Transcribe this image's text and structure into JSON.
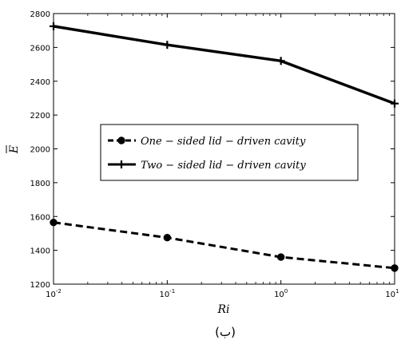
{
  "chart_data": {
    "type": "line",
    "x": [
      0.01,
      0.1,
      1,
      10
    ],
    "x_tick_labels": [
      {
        "base": "10",
        "exp": "-2"
      },
      {
        "base": "10",
        "exp": "-1"
      },
      {
        "base": "10",
        "exp": "0"
      },
      {
        "base": "10",
        "exp": "1"
      }
    ],
    "xscale": "log",
    "xlim": [
      0.01,
      10
    ],
    "ylim": [
      1200,
      2800
    ],
    "yticks": [
      1200,
      1400,
      1600,
      1800,
      2000,
      2200,
      2400,
      2600,
      2800
    ],
    "xlabel": "Ri",
    "ylabel": "E",
    "caption": "(ب)",
    "legend_position": "center",
    "grid": false,
    "series": [
      {
        "name": "One − sided lid − driven cavity",
        "values": [
          1565,
          1475,
          1360,
          1295
        ],
        "line_style": "dashed",
        "marker": "circle",
        "color": "#000000"
      },
      {
        "name": "Two − sided lid − driven cavity",
        "values": [
          2725,
          2615,
          2520,
          2268
        ],
        "line_style": "solid",
        "marker": "plus",
        "color": "#000000"
      }
    ]
  }
}
